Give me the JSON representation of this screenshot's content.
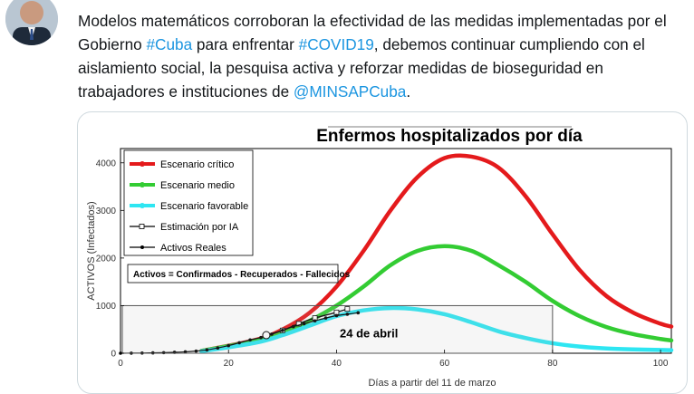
{
  "tweet": {
    "text_part1": "Modelos matemáticos corroboran la efectividad de las medidas implementadas por el Gobierno ",
    "hashtag_cuba": "#Cuba",
    "text_part2": " para enfrentar ",
    "hashtag_covid": "#COVID19",
    "text_part3": ", debemos continuar cumpliendo con el aislamiento social, la pesquisa activa y reforzar medidas de bioseguridad en trabajadores e instituciones de ",
    "mention": "@MINSAPCuba",
    "text_end": ".",
    "link_color": "#1b95e0"
  },
  "chart_data": {
    "type": "line",
    "title": "Enfermos hospitalizados por día",
    "ylabel": "ACTIVOS (Infectados)",
    "xlabel": "Días a partir del 11 de marzo",
    "xlim": [
      0,
      102
    ],
    "ylim": [
      0,
      4300
    ],
    "x_ticks": [
      0,
      20,
      40,
      60,
      80,
      100
    ],
    "y_ticks": [
      0,
      1000,
      2000,
      3000,
      4000
    ],
    "legend_position": "top-left",
    "series": [
      {
        "name": "Escenario crítico",
        "color": "#e41a1c",
        "x": [
          15,
          25,
          30,
          35,
          40,
          45,
          50,
          55,
          60,
          65,
          70,
          75,
          80,
          85,
          90,
          95,
          100,
          102
        ],
        "y": [
          50,
          280,
          500,
          850,
          1400,
          2150,
          3000,
          3700,
          4100,
          4130,
          3900,
          3300,
          2500,
          1750,
          1200,
          850,
          620,
          560
        ]
      },
      {
        "name": "Escenario medio",
        "color": "#33cc33",
        "x": [
          15,
          25,
          30,
          35,
          40,
          45,
          50,
          55,
          60,
          65,
          70,
          75,
          80,
          85,
          90,
          95,
          100,
          102
        ],
        "y": [
          50,
          260,
          420,
          680,
          1000,
          1400,
          1850,
          2150,
          2250,
          2150,
          1850,
          1500,
          1100,
          780,
          550,
          400,
          300,
          270
        ]
      },
      {
        "name": "Escenario favorable",
        "color": "#2ee6f2",
        "x": [
          15,
          25,
          30,
          35,
          40,
          45,
          50,
          55,
          60,
          65,
          70,
          75,
          80,
          85,
          90,
          95,
          100,
          102
        ],
        "y": [
          40,
          220,
          380,
          580,
          780,
          900,
          950,
          920,
          820,
          650,
          460,
          320,
          210,
          140,
          100,
          80,
          70,
          65
        ]
      },
      {
        "name": "Estimación por IA",
        "color": "#000000",
        "x": [
          27,
          30,
          33,
          36,
          40,
          42
        ],
        "y": [
          380,
          480,
          620,
          740,
          860,
          930
        ]
      },
      {
        "name": "Activos Reales",
        "color": "#000000",
        "x": [
          0,
          2,
          4,
          6,
          8,
          10,
          12,
          14,
          16,
          18,
          20,
          22,
          24,
          26,
          28,
          30,
          32,
          34,
          36,
          38,
          40,
          42,
          44
        ],
        "y": [
          0,
          2,
          4,
          8,
          12,
          20,
          30,
          45,
          70,
          110,
          160,
          220,
          280,
          330,
          400,
          480,
          560,
          620,
          680,
          740,
          790,
          820,
          850
        ]
      }
    ],
    "annotations": {
      "box_text": "Activos = Confirmados - Recuperados - Fallecidos",
      "date_label": "24 de abril"
    }
  }
}
